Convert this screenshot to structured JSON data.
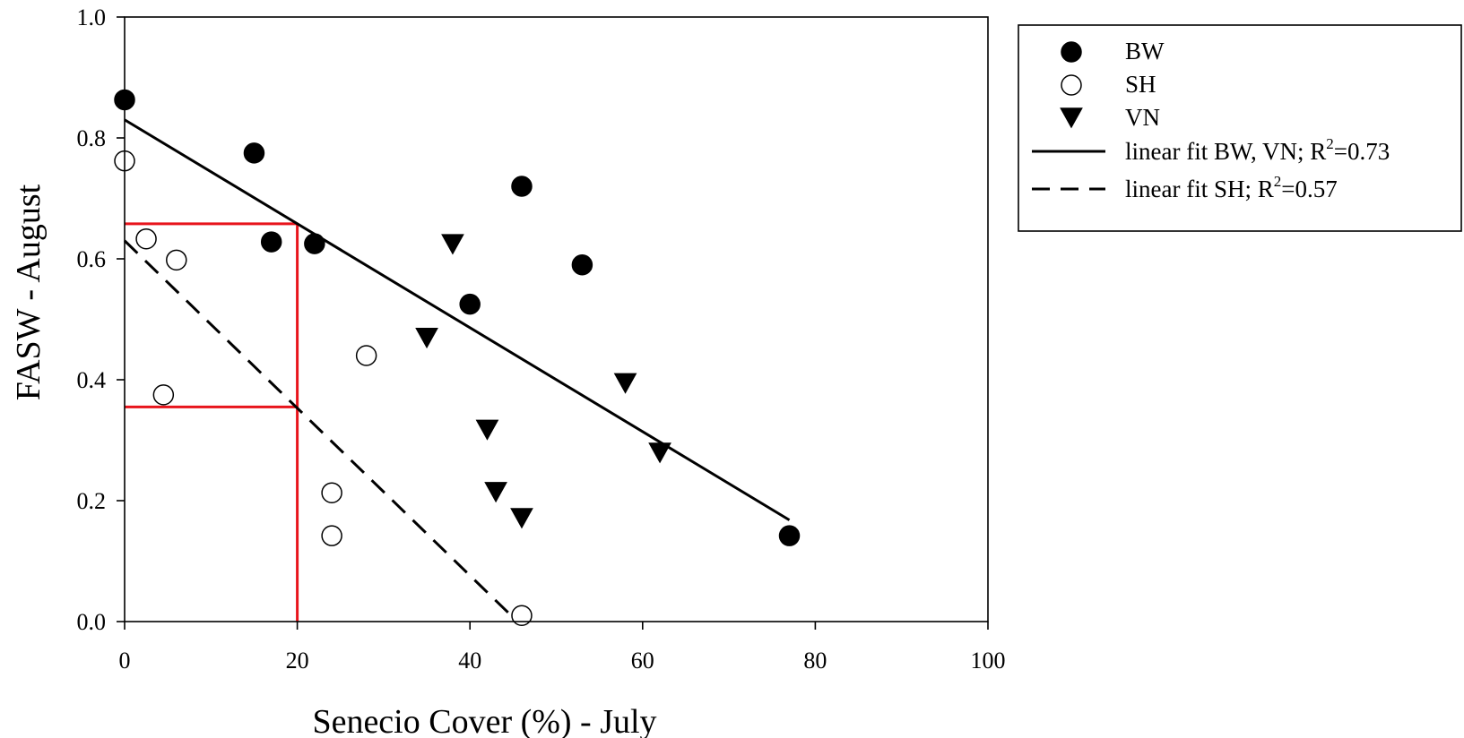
{
  "chart_data": {
    "type": "scatter",
    "xlabel": "Senecio Cover  (%) - July",
    "ylabel": "FASW - August",
    "xlim": [
      0,
      100
    ],
    "ylim": [
      0,
      1.0
    ],
    "x_ticks": [
      {
        "value": 0,
        "label": "0"
      },
      {
        "value": 20,
        "label": "20"
      },
      {
        "value": 40,
        "label": "40"
      },
      {
        "value": 60,
        "label": "60"
      },
      {
        "value": 80,
        "label": "80"
      },
      {
        "value": 100,
        "label": "100"
      }
    ],
    "y_ticks": [
      {
        "value": 0.0,
        "label": "0.0"
      },
      {
        "value": 0.2,
        "label": "0.2"
      },
      {
        "value": 0.4,
        "label": "0.4"
      },
      {
        "value": 0.6,
        "label": "0.6"
      },
      {
        "value": 0.8,
        "label": "0.8"
      },
      {
        "value": 1.0,
        "label": "1.0"
      }
    ],
    "grid": false,
    "legend_position": "outside-right-top",
    "series": [
      {
        "name": "BW",
        "marker": "filled-circle",
        "color": "#000000",
        "points": [
          {
            "x": 0,
            "y": 0.863
          },
          {
            "x": 15,
            "y": 0.775
          },
          {
            "x": 17,
            "y": 0.628
          },
          {
            "x": 22,
            "y": 0.625
          },
          {
            "x": 40,
            "y": 0.525
          },
          {
            "x": 46,
            "y": 0.72
          },
          {
            "x": 53,
            "y": 0.59
          },
          {
            "x": 77,
            "y": 0.142
          }
        ]
      },
      {
        "name": "SH",
        "marker": "open-circle",
        "color": "#000000",
        "points": [
          {
            "x": 0,
            "y": 0.762
          },
          {
            "x": 2.5,
            "y": 0.633
          },
          {
            "x": 6,
            "y": 0.598
          },
          {
            "x": 4.5,
            "y": 0.375
          },
          {
            "x": 28,
            "y": 0.44
          },
          {
            "x": 24,
            "y": 0.213
          },
          {
            "x": 24,
            "y": 0.142
          },
          {
            "x": 46,
            "y": 0.01
          }
        ]
      },
      {
        "name": "VN",
        "marker": "filled-triangle-down",
        "color": "#000000",
        "points": [
          {
            "x": 38,
            "y": 0.625
          },
          {
            "x": 35,
            "y": 0.47
          },
          {
            "x": 58,
            "y": 0.395
          },
          {
            "x": 42,
            "y": 0.318
          },
          {
            "x": 62,
            "y": 0.28
          },
          {
            "x": 43,
            "y": 0.215
          },
          {
            "x": 46,
            "y": 0.172
          }
        ]
      }
    ],
    "fits": [
      {
        "name": "linear fit BW, VN; R",
        "sup": "2",
        "value_text": "=0.73",
        "style": "solid",
        "color": "#000000",
        "x1": 0,
        "y1": 0.83,
        "x2": 77,
        "y2": 0.168
      },
      {
        "name": "linear fit SH; R",
        "sup": "2",
        "value_text": "=0.57",
        "style": "dashed",
        "color": "#000000",
        "x1": 0,
        "y1": 0.63,
        "x2": 45.5,
        "y2": 0.0
      }
    ],
    "reference_lines": {
      "color": "#e8141c",
      "x_value": 20,
      "y_values": [
        0.658,
        0.355
      ]
    }
  }
}
